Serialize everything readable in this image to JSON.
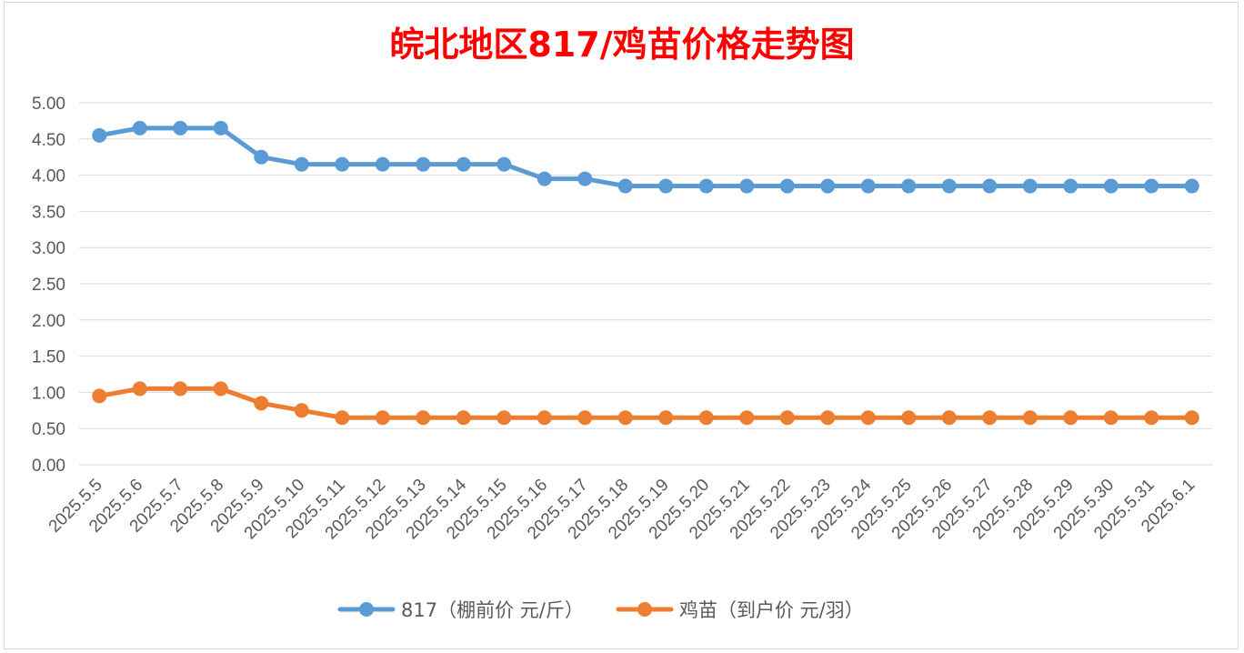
{
  "chart_data": {
    "type": "line",
    "title": "皖北地区817/鸡苗价格走势图",
    "xlabel": "",
    "ylabel": "",
    "categories": [
      "2025.5.5",
      "2025.5.6",
      "2025.5.7",
      "2025.5.8",
      "2025.5.9",
      "2025.5.10",
      "2025.5.11",
      "2025.5.12",
      "2025.5.13",
      "2025.5.14",
      "2025.5.15",
      "2025.5.16",
      "2025.5.17",
      "2025.5.18",
      "2025.5.19",
      "2025.5.20",
      "2025.5.21",
      "2025.5.22",
      "2025.5.23",
      "2025.5.24",
      "2025.5.25",
      "2025.5.26",
      "2025.5.27",
      "2025.5.28",
      "2025.5.29",
      "2025.5.30",
      "2025.5.31",
      "2025.6.1"
    ],
    "series": [
      {
        "name": "817（棚前价 元/斤）",
        "color": "#5b9bd5",
        "values": [
          4.55,
          4.65,
          4.65,
          4.65,
          4.25,
          4.15,
          4.15,
          4.15,
          4.15,
          4.15,
          4.15,
          3.95,
          3.95,
          3.85,
          3.85,
          3.85,
          3.85,
          3.85,
          3.85,
          3.85,
          3.85,
          3.85,
          3.85,
          3.85,
          3.85,
          3.85,
          3.85,
          3.85
        ]
      },
      {
        "name": "鸡苗（到户价 元/羽）",
        "color": "#ed7d31",
        "values": [
          0.95,
          1.05,
          1.05,
          1.05,
          0.85,
          0.75,
          0.65,
          0.65,
          0.65,
          0.65,
          0.65,
          0.65,
          0.65,
          0.65,
          0.65,
          0.65,
          0.65,
          0.65,
          0.65,
          0.65,
          0.65,
          0.65,
          0.65,
          0.65,
          0.65,
          0.65,
          0.65,
          0.65
        ]
      }
    ],
    "yticks": [
      "0.00",
      "0.50",
      "1.00",
      "1.50",
      "2.00",
      "2.50",
      "3.00",
      "3.50",
      "4.00",
      "4.50",
      "5.00"
    ],
    "ylim": [
      0,
      5
    ],
    "grid": true,
    "legend": "bottom"
  }
}
